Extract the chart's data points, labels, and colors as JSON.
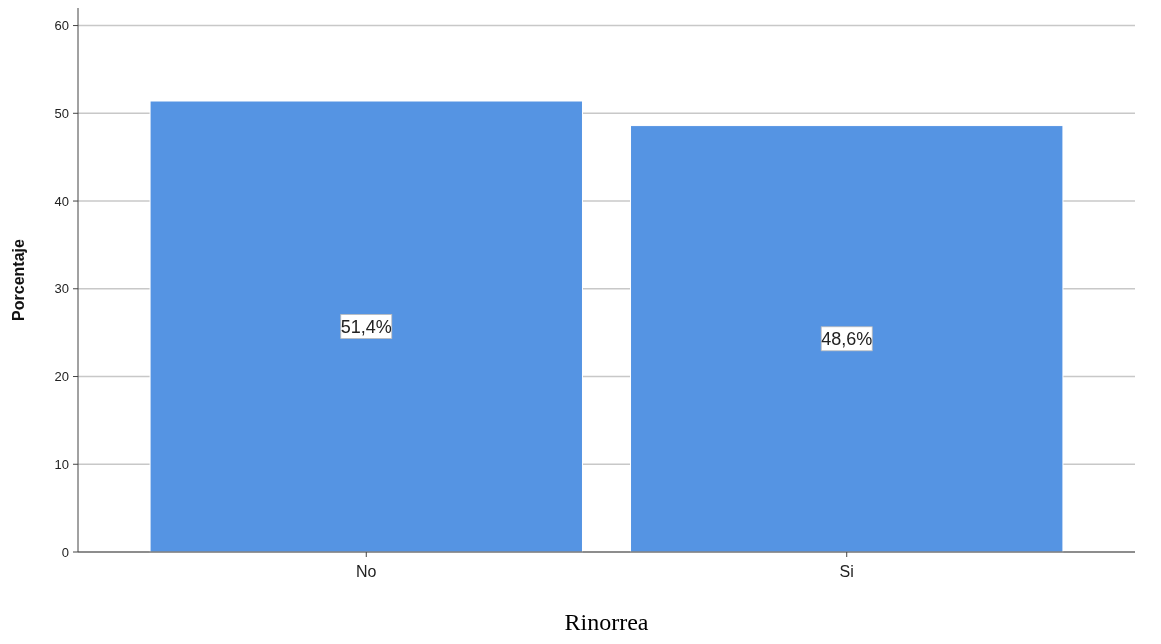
{
  "chart_data": {
    "type": "bar",
    "xlabel": "Rinorrea",
    "ylabel": "Porcentaje",
    "categories": [
      "No",
      "Si"
    ],
    "values": [
      51.4,
      48.6
    ],
    "value_labels": [
      "51,4%",
      "48,6%"
    ],
    "color": "#5594e3",
    "ylim": [
      0,
      62
    ],
    "yticks": [
      0,
      10,
      20,
      30,
      40,
      50,
      60
    ],
    "grid": "y"
  }
}
